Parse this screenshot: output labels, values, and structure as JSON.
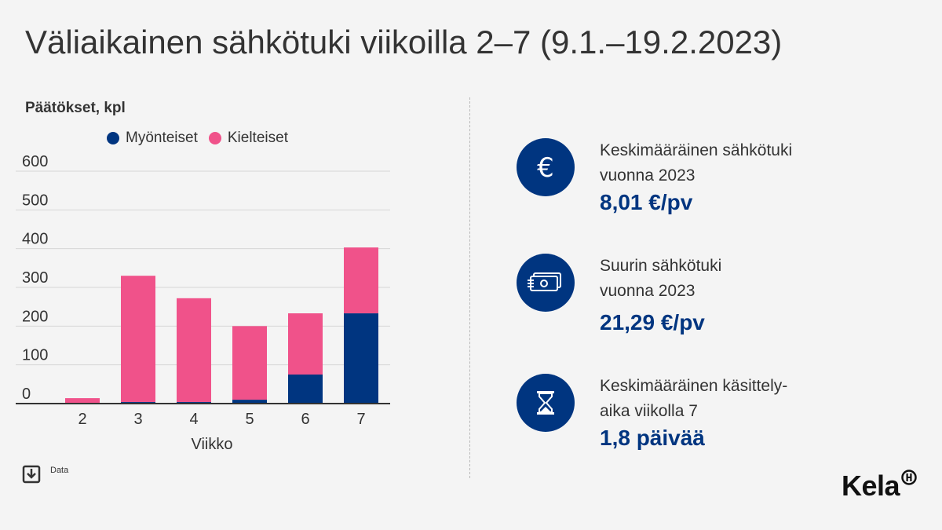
{
  "title": "Väliaikainen sähkötuki viikoilla 2–7 (9.1.–19.2.2023)",
  "colors": {
    "myonteiset": "#003580",
    "kielteiset": "#f0528a",
    "accent": "#003580"
  },
  "chart_data": {
    "type": "bar",
    "stacked": true,
    "title": "Väliaikainen sähkötuki viikoilla 2–7 (9.1.–19.2.2023)",
    "ylabel": "Päätökset, kpl",
    "xlabel": "Viikko",
    "categories": [
      "2",
      "3",
      "4",
      "5",
      "6",
      "7"
    ],
    "series": [
      {
        "name": "Myönteiset",
        "values": [
          0,
          4,
          4,
          10,
          75,
          233
        ]
      },
      {
        "name": "Kielteiset",
        "values": [
          14,
          326,
          268,
          190,
          158,
          170
        ]
      }
    ],
    "ylim": [
      0,
      600
    ],
    "yticks": [
      "0",
      "100",
      "200",
      "300",
      "400",
      "500",
      "600"
    ],
    "grid": true,
    "legend": "top"
  },
  "stats": [
    {
      "icon": "euro-icon",
      "label1": "Keskimääräinen sähkötuki",
      "label2": "vuonna 2023",
      "value": "8,01 €/pv"
    },
    {
      "icon": "money-stack-icon",
      "label1": "Suurin sähkötuki",
      "label2": "vuonna 2023",
      "value": "21,29 €/pv"
    },
    {
      "icon": "hourglass-icon",
      "label1": "Keskimääräinen käsittely-",
      "label2": "aika viikolla 7",
      "value": "1,8 päivää"
    }
  ],
  "download_label": "Data",
  "logo_text": "Kela"
}
